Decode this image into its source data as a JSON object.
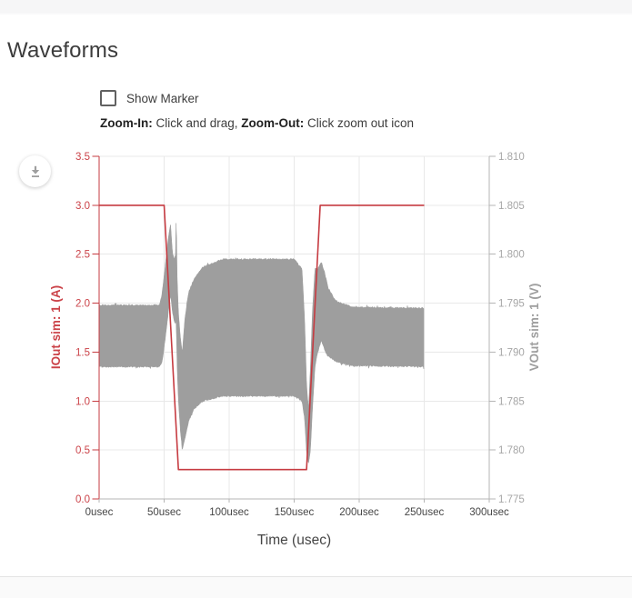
{
  "header": {
    "title": "Waveforms"
  },
  "controls": {
    "show_marker_label": "Show Marker",
    "marker_checked": false,
    "zoom_in_label": "Zoom-In:",
    "zoom_in_text": " Click and drag, ",
    "zoom_out_label": "Zoom-Out:",
    "zoom_out_text": " Click zoom out icon",
    "download_icon": "download-icon"
  },
  "chart_data": {
    "type": "line",
    "title": "",
    "xlabel": "Time (usec)",
    "xlim": [
      0,
      300
    ],
    "x_ticks": [
      "0usec",
      "50usec",
      "100usec",
      "150usec",
      "200usec",
      "250usec",
      "300usec"
    ],
    "grid": true,
    "legend": "none",
    "colors": {
      "grid": "#e8e8e8",
      "axis_gray": "#b5b5b5",
      "bottom_label": "#454545",
      "red": "#c63b41",
      "red_label": "#cb4349",
      "gray_trace": "#9e9e9e",
      "gray_label": "#a6a6a6"
    },
    "left_axis": {
      "label": "IOut sim: 1 (A)",
      "lim": [
        0,
        3.5
      ],
      "ticks": [
        "0.0",
        "0.5",
        "1.0",
        "1.5",
        "2.0",
        "2.5",
        "3.0",
        "3.5"
      ]
    },
    "right_axis": {
      "label": "VOut sim: 1 (V)",
      "lim": [
        1.775,
        1.81
      ],
      "ticks": [
        "1.775",
        "1.780",
        "1.785",
        "1.790",
        "1.795",
        "1.800",
        "1.805",
        "1.810"
      ]
    },
    "series": [
      {
        "name": "IOut sim: 1",
        "axis": "left",
        "style": "line",
        "color": "#c63b41",
        "points": [
          [
            0,
            3.0
          ],
          [
            50,
            3.0
          ],
          [
            61,
            0.3
          ],
          [
            159.5,
            0.3
          ],
          [
            170,
            3.0
          ],
          [
            250,
            3.0
          ]
        ]
      },
      {
        "name": "VOut sim: 1",
        "axis": "right",
        "style": "noisy-band",
        "color": "#9e9e9e",
        "envelope": [
          [
            0,
            1.7885,
            1.7948
          ],
          [
            46.5,
            1.7885,
            1.7948
          ],
          [
            48.5,
            1.789,
            1.796
          ],
          [
            51,
            1.7915,
            1.799
          ],
          [
            53.5,
            1.7945,
            1.802
          ],
          [
            55,
            1.7958,
            1.803
          ],
          [
            56.5,
            1.794,
            1.8
          ],
          [
            58,
            1.793,
            1.7995
          ],
          [
            58.8,
            1.793,
            1.8
          ],
          [
            59.3,
            1.7932,
            1.8043
          ],
          [
            59.9,
            1.789,
            1.798
          ],
          [
            61,
            1.785,
            1.794
          ],
          [
            62.5,
            1.782,
            1.7915
          ],
          [
            64,
            1.78,
            1.79
          ],
          [
            66,
            1.7812,
            1.7935
          ],
          [
            69,
            1.783,
            1.7962
          ],
          [
            73,
            1.7842,
            1.7975
          ],
          [
            80,
            1.785,
            1.7987
          ],
          [
            95,
            1.7855,
            1.7995
          ],
          [
            150,
            1.7855,
            1.7995
          ],
          [
            156,
            1.785,
            1.7985
          ],
          [
            158,
            1.7832,
            1.7935
          ],
          [
            159.5,
            1.7798,
            1.7868
          ],
          [
            161,
            1.7786,
            1.784
          ],
          [
            162.5,
            1.78,
            1.7885
          ],
          [
            164,
            1.784,
            1.794
          ],
          [
            166,
            1.7885,
            1.7985
          ],
          [
            168,
            1.79,
            1.7985
          ],
          [
            171,
            1.7912,
            1.7992
          ],
          [
            174,
            1.79,
            1.7978
          ],
          [
            176,
            1.7896,
            1.7966
          ],
          [
            182,
            1.789,
            1.7952
          ],
          [
            195,
            1.7886,
            1.7946
          ],
          [
            250,
            1.7885,
            1.7945
          ]
        ]
      }
    ]
  }
}
